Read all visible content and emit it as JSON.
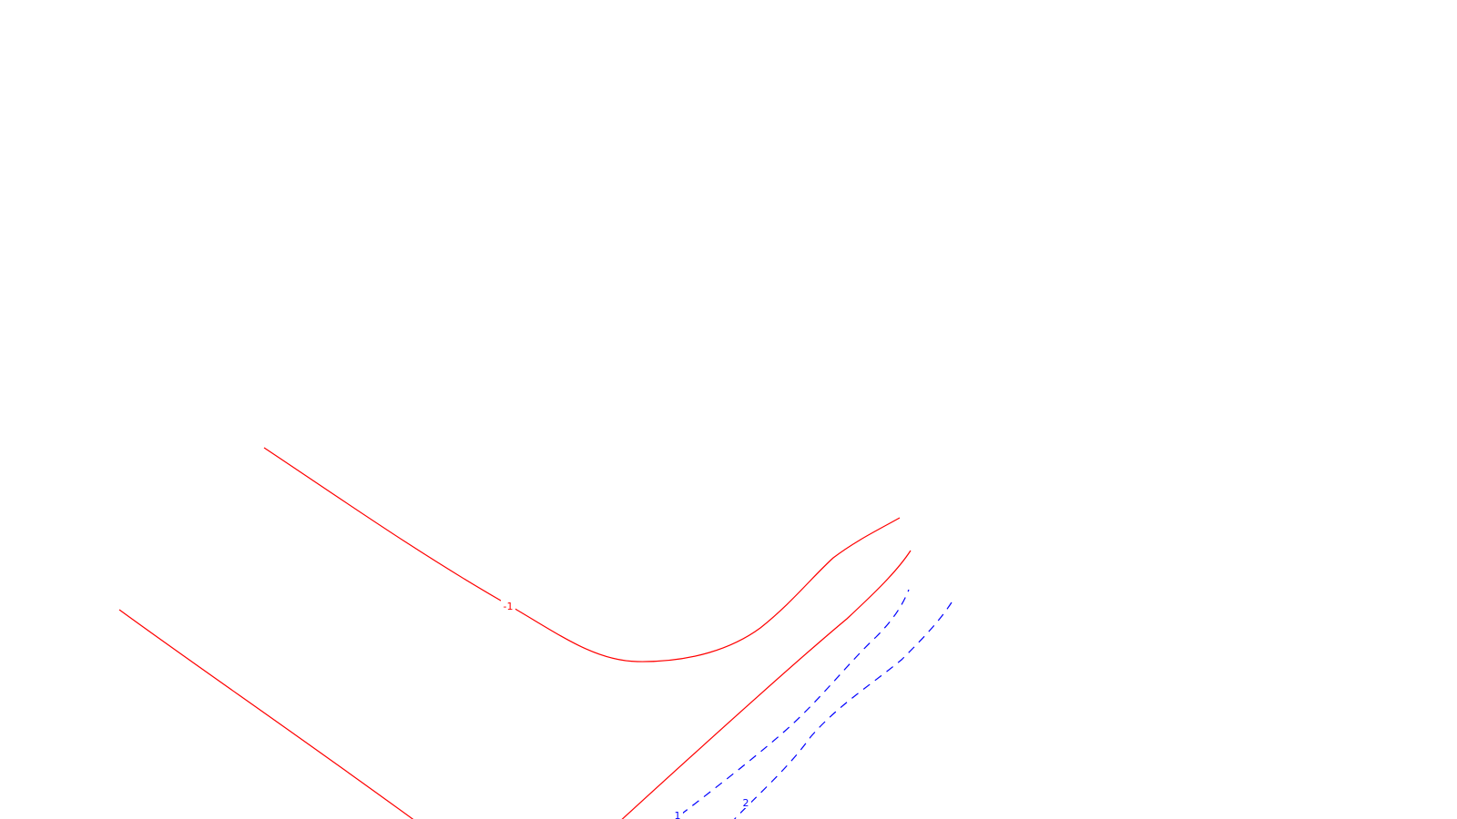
{
  "contour_plot": {
    "colors": {
      "negative": "#ff0000",
      "positive": "#0000ff",
      "background": "#ffffff"
    },
    "contours": [
      {
        "level": "-1",
        "sign": "negative",
        "style": "solid"
      },
      {
        "level": "",
        "sign": "negative",
        "style": "solid"
      },
      {
        "level": "",
        "sign": "negative",
        "style": "solid"
      },
      {
        "level": "1",
        "sign": "positive",
        "style": "dashed"
      },
      {
        "level": "2",
        "sign": "positive",
        "style": "dashed"
      }
    ]
  }
}
